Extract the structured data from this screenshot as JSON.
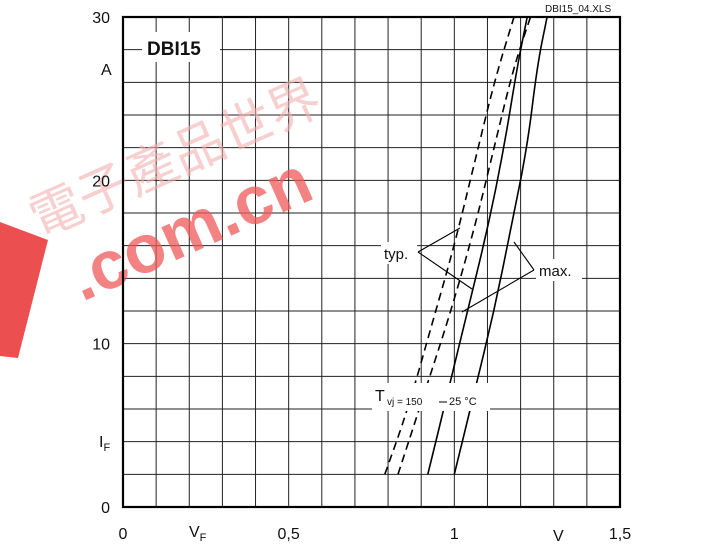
{
  "chart_data": {
    "type": "line",
    "title": "DBI15",
    "figure_ref": "DBI15_04.XLS",
    "x_axis": {
      "label": "V_F",
      "unit": "V",
      "range": [
        0,
        1.5
      ],
      "ticks": [
        "0",
        "0,5",
        "1",
        "1,5"
      ]
    },
    "y_axis": {
      "label": "I_F",
      "unit": "A",
      "range": [
        0,
        30
      ],
      "ticks": [
        "0",
        "10",
        "20",
        "30"
      ]
    },
    "grid": true,
    "series": [
      {
        "style": "dashed",
        "x": [
          0.79,
          0.86,
          0.93,
          1.0,
          1.06,
          1.12,
          1.18
        ],
        "y": [
          2,
          6,
          11,
          16,
          21,
          26,
          30
        ]
      },
      {
        "style": "dashed",
        "x": [
          0.83,
          0.91,
          0.99,
          1.06,
          1.12,
          1.18,
          1.23
        ],
        "y": [
          2,
          7,
          12,
          17,
          22,
          27,
          30
        ]
      },
      {
        "style": "solid",
        "x": [
          0.92,
          0.98,
          1.04,
          1.1,
          1.15,
          1.19,
          1.22
        ],
        "y": [
          2,
          7,
          12,
          17,
          22,
          27,
          30
        ]
      },
      {
        "style": "solid",
        "x": [
          1.0,
          1.06,
          1.12,
          1.17,
          1.22,
          1.25,
          1.28
        ],
        "y": [
          2,
          7,
          12,
          17,
          22,
          27,
          30
        ]
      }
    ],
    "annotations": [
      {
        "text": "typ."
      },
      {
        "text": "max."
      },
      {
        "text": "T"
      },
      {
        "text": "vj = 150"
      },
      {
        "text": "25 °C"
      }
    ],
    "watermark": {
      "text": "電子產品世界",
      "domain": ".com.cn"
    }
  }
}
